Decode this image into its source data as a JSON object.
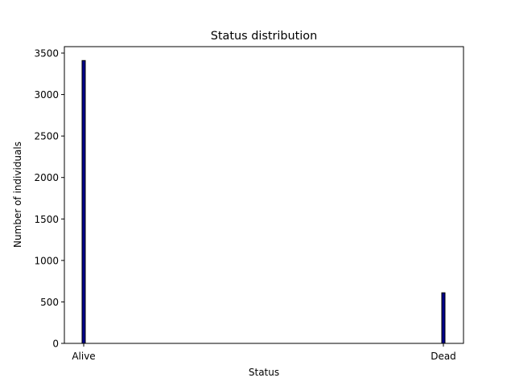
{
  "chart_data": {
    "type": "bar",
    "title": "Status distribution",
    "xlabel": "Status",
    "ylabel": "Number of individuals",
    "categories": [
      "Alive",
      "Dead"
    ],
    "values": [
      3410,
      610
    ],
    "ylim": [
      0,
      3600
    ],
    "yticks": [
      0,
      500,
      1000,
      1500,
      2000,
      2500,
      3000,
      3500
    ],
    "grid": false,
    "legend": "none",
    "colors": {
      "bar_fill": "#00008b",
      "bar_edge": "#000000",
      "axes": "#000000",
      "background": "#ffffff"
    }
  }
}
